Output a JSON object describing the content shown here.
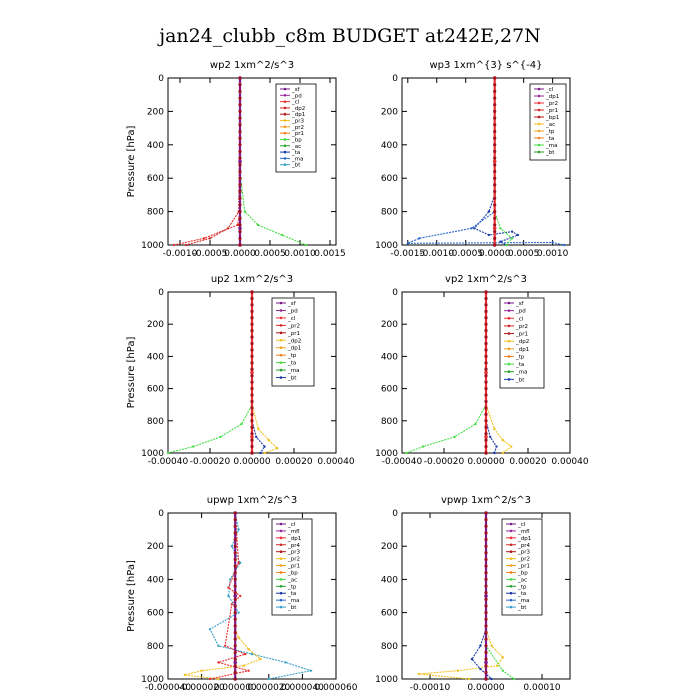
{
  "figure_title": "jan24_clubb_c8m  BUDGET at242E,27N",
  "chart_data": [
    {
      "type": "line",
      "title": "wp2   1xm^2/s^3",
      "ylabel": "Pressure [hPa]",
      "xlim": [
        -0.0012,
        0.0016
      ],
      "ylim": [
        1000,
        0
      ],
      "yticks": [
        0,
        200,
        400,
        600,
        800,
        1000
      ],
      "xtick_labels": [
        "-0.0010",
        "-0.0005",
        "0.0000",
        "0.0005",
        "0.0010",
        "0.0015"
      ],
      "xtick_values": [
        -0.001,
        -0.0005,
        0.0,
        0.0005,
        0.001,
        0.0015
      ],
      "legend": [
        "_sf",
        "_pd",
        "_cl",
        "_dp2",
        "_dp1",
        "_pr3",
        "_pr2",
        "_pr1",
        "_bp",
        "_ac",
        "_ta",
        "_ma",
        "_bt"
      ],
      "series": [
        {
          "name": "_sf",
          "color": "#e83030",
          "x": [
            0,
            0,
            0,
            -4e-05,
            -0.0006,
            -0.0011
          ],
          "y": [
            0,
            600,
            800,
            880,
            960,
            1000
          ]
        },
        {
          "name": "_pr1",
          "color": "#44dd44",
          "x": [
            0,
            1e-05,
            8e-05,
            0.0003,
            0.0007,
            0.0011
          ],
          "y": [
            0,
            600,
            800,
            880,
            940,
            1000
          ]
        },
        {
          "name": "_dp1",
          "color": "#d02828",
          "x": [
            0,
            -2e-05,
            -0.0002,
            -0.0005,
            -0.0009
          ],
          "y": [
            0,
            800,
            900,
            960,
            1000
          ]
        },
        {
          "name": "_bt",
          "color": "#7a1a8a",
          "x": [
            0,
            0,
            0,
            0
          ],
          "y": [
            0,
            500,
            900,
            1000
          ]
        }
      ]
    },
    {
      "type": "line",
      "title": "wp3   1xm^{3} s^{-4}",
      "ylabel": "",
      "xlim": [
        -0.0016,
        0.0013
      ],
      "ylim": [
        1000,
        0
      ],
      "yticks": [
        0,
        200,
        400,
        600,
        800,
        1000
      ],
      "xtick_labels": [
        "-0.0015",
        "-0.0010",
        "-0.0005",
        "0.0000",
        "0.0005",
        "0.0010"
      ],
      "xtick_values": [
        -0.0015,
        -0.001,
        -0.0005,
        0.0,
        0.0005,
        0.001
      ],
      "legend": [
        "_cl",
        "_dp1",
        "_pr2",
        "_pr1",
        "_bp1",
        "_ac",
        "_tp",
        "_ta",
        "_ma",
        "_bt"
      ],
      "series": [
        {
          "name": "_tp",
          "color": "#1a3aa8",
          "x": [
            0,
            0,
            -0.0001,
            -0.00035,
            -0.0001,
            0.0003,
            0.0004,
            0.0001,
            0.0002
          ],
          "y": [
            0,
            700,
            800,
            900,
            940,
            920,
            940,
            980,
            1000
          ]
        },
        {
          "name": "_ta",
          "color": "#2a6ad0",
          "x": [
            0,
            0,
            -0.0004,
            -0.0013,
            -0.0015,
            0.001,
            0.0012
          ],
          "y": [
            0,
            800,
            900,
            960,
            990,
            985,
            1000
          ]
        },
        {
          "name": "_ac",
          "color": "#44dd44",
          "x": [
            0,
            0,
            0.0001,
            0.0003,
            0.0002
          ],
          "y": [
            0,
            800,
            900,
            960,
            1000
          ]
        },
        {
          "name": "_bt",
          "color": "#e83030",
          "x": [
            0,
            0,
            0,
            0
          ],
          "y": [
            0,
            500,
            900,
            1000
          ]
        }
      ]
    },
    {
      "type": "line",
      "title": "up2   1xm^2/s^3",
      "ylabel": "Pressure [hPa]",
      "xlim": [
        -0.0004,
        0.0004
      ],
      "ylim": [
        1000,
        0
      ],
      "yticks": [
        0,
        200,
        400,
        600,
        800,
        1000
      ],
      "xtick_labels": [
        "-0.00040",
        "-0.00020",
        "0.00000",
        "0.00020",
        "0.00040"
      ],
      "xtick_values": [
        -0.0004,
        -0.0002,
        0.0,
        0.0002,
        0.0004
      ],
      "legend": [
        "_sf",
        "_pd",
        "_cl",
        "_pr2",
        "_pr1",
        "_dp2",
        "_dp1",
        "_tp",
        "_ta",
        "_ma",
        "_bt"
      ],
      "series": [
        {
          "name": "_dp1",
          "color": "#44dd44",
          "x": [
            0,
            0,
            -5e-05,
            -0.00015,
            -0.00028,
            -0.0004
          ],
          "y": [
            0,
            700,
            820,
            900,
            960,
            1000
          ]
        },
        {
          "name": "_pr1",
          "color": "#f0c020",
          "x": [
            0,
            0,
            3e-05,
            8e-05,
            0.00012,
            6e-05
          ],
          "y": [
            0,
            700,
            850,
            920,
            970,
            1000
          ]
        },
        {
          "name": "_tp",
          "color": "#1a3aa8",
          "x": [
            0,
            0,
            2e-05,
            6e-05,
            4e-05
          ],
          "y": [
            0,
            800,
            900,
            960,
            1000
          ]
        },
        {
          "name": "_bt",
          "color": "#e83030",
          "x": [
            0,
            0,
            0,
            0
          ],
          "y": [
            0,
            500,
            900,
            1000
          ]
        }
      ]
    },
    {
      "type": "line",
      "title": "vp2   1xm^2/s^3",
      "ylabel": "",
      "xlim": [
        -0.0004,
        0.0004
      ],
      "ylim": [
        1000,
        0
      ],
      "yticks": [
        0,
        200,
        400,
        600,
        800,
        1000
      ],
      "xtick_labels": [
        "-0.00040",
        "-0.00020",
        "0.00000",
        "0.00020",
        "0.00040"
      ],
      "xtick_values": [
        -0.0004,
        -0.0002,
        0.0,
        0.0002,
        0.0004
      ],
      "legend": [
        "_sf",
        "_pd",
        "_cl",
        "_pr2",
        "_pr1",
        "_dp2",
        "_dp1",
        "_tp",
        "_ta",
        "_ma",
        "_bt"
      ],
      "series": [
        {
          "name": "_dp1",
          "color": "#44dd44",
          "x": [
            0,
            0,
            -5e-05,
            -0.00015,
            -0.0003,
            -0.00038
          ],
          "y": [
            0,
            700,
            820,
            900,
            960,
            1000
          ]
        },
        {
          "name": "_pr1",
          "color": "#f0c020",
          "x": [
            0,
            0,
            4e-05,
            8e-05,
            0.00012,
            8e-05
          ],
          "y": [
            0,
            700,
            850,
            920,
            960,
            1000
          ]
        },
        {
          "name": "_tp",
          "color": "#1a3aa8",
          "x": [
            0,
            0,
            2e-05,
            5e-05,
            4e-05
          ],
          "y": [
            0,
            800,
            900,
            960,
            1000
          ]
        },
        {
          "name": "_bt",
          "color": "#e83030",
          "x": [
            0,
            0,
            0,
            0
          ],
          "y": [
            0,
            500,
            900,
            1000
          ]
        }
      ]
    },
    {
      "type": "line",
      "title": "upwp   1xm^2/s^3",
      "ylabel": "Pressure [hPa]",
      "xlim": [
        -4e-05,
        6e-05
      ],
      "ylim": [
        1000,
        0
      ],
      "yticks": [
        0,
        200,
        400,
        600,
        800,
        1000
      ],
      "xtick_labels": [
        "-0.000040",
        "-0.000020",
        "0.000000",
        "0.000020",
        "0.000040",
        "0.000060"
      ],
      "xtick_values": [
        -4e-05,
        -2e-05,
        0.0,
        2e-05,
        4e-05,
        6e-05
      ],
      "legend": [
        "_cl",
        "_mfl",
        "_dp1",
        "_pr4",
        "_pr3",
        "_pr2",
        "_pr1",
        "_bp",
        "_ac",
        "_tp",
        "_ta",
        "_ma",
        "_bt"
      ],
      "series": [
        {
          "name": "_tp",
          "color": "#3aa0c8",
          "x": [
            0,
            2e-06,
            -2e-06,
            3e-06,
            -3e-06,
            -4e-06,
            2e-06,
            -1.5e-05,
            -1e-05,
            1e-05,
            3e-05,
            4.5e-05,
            2e-05
          ],
          "y": [
            0,
            100,
            200,
            300,
            400,
            500,
            600,
            700,
            800,
            850,
            900,
            950,
            1000
          ]
        },
        {
          "name": "_pr1",
          "color": "#f0c020",
          "x": [
            0,
            0,
            0,
            2e-06,
            8e-06,
            1.5e-05,
            5e-06,
            -2e-05,
            -3e-05,
            -1e-05
          ],
          "y": [
            0,
            500,
            700,
            750,
            820,
            880,
            920,
            950,
            975,
            1000
          ]
        },
        {
          "name": "_dp1",
          "color": "#e83030",
          "x": [
            0,
            2e-06,
            -4e-06,
            3e-06,
            -2e-06,
            -6e-06,
            6e-06,
            -1e-05,
            8e-06,
            -1.5e-05
          ],
          "y": [
            0,
            300,
            450,
            500,
            550,
            800,
            850,
            900,
            950,
            1000
          ]
        },
        {
          "name": "_bt",
          "color": "#7a1a8a",
          "x": [
            0,
            0,
            0,
            0
          ],
          "y": [
            0,
            500,
            900,
            1000
          ]
        }
      ]
    },
    {
      "type": "line",
      "title": "vpwp   1xm^2/s^3",
      "ylabel": "",
      "xlim": [
        -0.00015,
        0.00015
      ],
      "ylim": [
        1000,
        0
      ],
      "yticks": [
        0,
        200,
        400,
        600,
        800,
        1000
      ],
      "xtick_labels": [
        "-0.00010",
        "0.00000",
        "0.00010"
      ],
      "xtick_values": [
        -0.0001,
        0.0,
        0.0001
      ],
      "legend": [
        "_cl",
        "_mfl",
        "_dp1",
        "_pr4",
        "_pr3",
        "_pr2",
        "_pr1",
        "_bp",
        "_ac",
        "_tp",
        "_ta",
        "_ma",
        "_bt"
      ],
      "series": [
        {
          "name": "_pr1",
          "color": "#f0c020",
          "x": [
            0,
            0,
            1e-05,
            3e-05,
            2e-05,
            -5e-05,
            -0.00012,
            -3e-05
          ],
          "y": [
            0,
            700,
            800,
            870,
            920,
            950,
            970,
            1000
          ]
        },
        {
          "name": "_tp",
          "color": "#1a3aa8",
          "x": [
            0,
            0,
            -1e-05,
            -2.5e-05,
            -1e-05,
            1e-05
          ],
          "y": [
            0,
            700,
            800,
            880,
            940,
            1000
          ]
        },
        {
          "name": "_ac",
          "color": "#44dd44",
          "x": [
            0,
            0,
            3e-05,
            5e-05
          ],
          "y": [
            0,
            800,
            950,
            1000
          ]
        },
        {
          "name": "_bt",
          "color": "#7a1a8a",
          "x": [
            0,
            0,
            0,
            0
          ],
          "y": [
            0,
            500,
            900,
            1000
          ]
        }
      ]
    }
  ]
}
